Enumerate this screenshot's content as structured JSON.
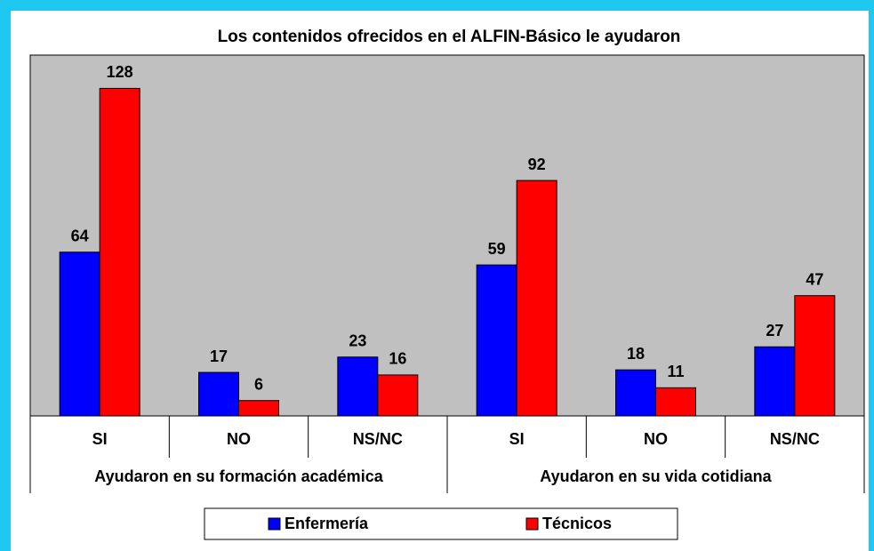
{
  "chart_data": {
    "type": "bar",
    "title": "Los contenidos ofrecidos en el ALFIN-Básico le ayudaron",
    "categories": [
      "SI",
      "NO",
      "NS/NC",
      "SI",
      "NO",
      "NS/NC"
    ],
    "groups": [
      "Ayudaron en su formación académica",
      "Ayudaron en su vida cotidiana"
    ],
    "series": [
      {
        "name": "Enfermería",
        "color": "#0000ff",
        "values": [
          64,
          17,
          23,
          59,
          18,
          27
        ]
      },
      {
        "name": "Técnicos",
        "color": "#ff0000",
        "values": [
          128,
          6,
          16,
          92,
          11,
          47
        ]
      }
    ],
    "ylim": [
      0,
      141
    ],
    "plot_background": "#c0c0c0"
  }
}
